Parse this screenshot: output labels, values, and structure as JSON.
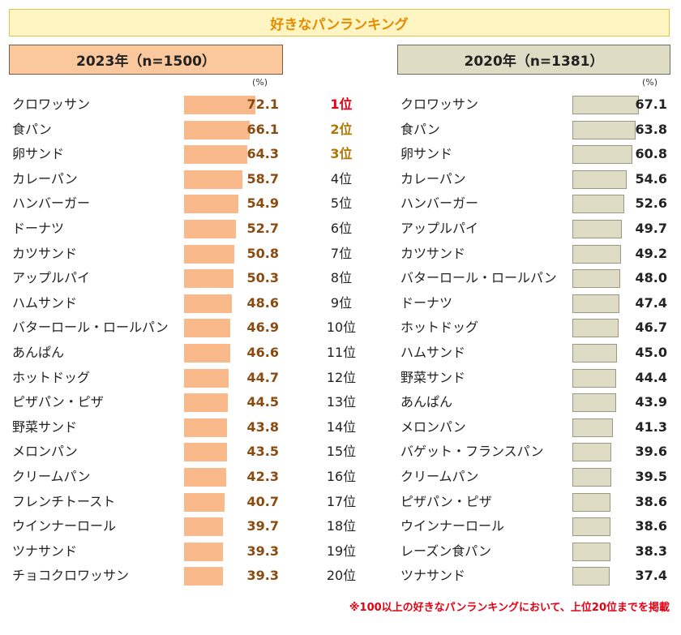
{
  "title": "好きなパンランキング",
  "footnote": "※100以上の好きなパンランキングにおいて、上位20位までを掲載",
  "colors": {
    "bar_2023": "#f9b98b",
    "bar_2020": "#dedcc4",
    "title_text": "#e58b00",
    "rank1": "#e60012",
    "rank_top3": "#b07800"
  },
  "chart_data": {
    "type": "bar",
    "orientation": "horizontal",
    "unit": "(%)",
    "ranks": [
      "1位",
      "2位",
      "3位",
      "4位",
      "5位",
      "6位",
      "7位",
      "8位",
      "9位",
      "10位",
      "11位",
      "12位",
      "13位",
      "14位",
      "15位",
      "16位",
      "17位",
      "18位",
      "19位",
      "20位"
    ],
    "series": [
      {
        "name": "2023年（n=1500）",
        "categories": [
          "クロワッサン",
          "食パン",
          "卵サンド",
          "カレーパン",
          "ハンバーガー",
          "ドーナツ",
          "カツサンド",
          "アップルパイ",
          "ハムサンド",
          "バターロール・ロールパン",
          "あんぱん",
          "ホットドッグ",
          "ピザパン・ピザ",
          "野菜サンド",
          "メロンパン",
          "クリームパン",
          "フレンチトースト",
          "ウインナーロール",
          "ツナサンド",
          "チョコクロワッサン"
        ],
        "values": [
          72.1,
          66.1,
          64.3,
          58.7,
          54.9,
          52.7,
          50.8,
          50.3,
          48.6,
          46.9,
          46.6,
          44.7,
          44.5,
          43.8,
          43.5,
          42.3,
          40.7,
          39.7,
          39.3,
          39.3
        ],
        "labels": [
          "72.1",
          "66.1",
          "64.3",
          "58.7",
          "54.9",
          "52.7",
          "50.8",
          "50.3",
          "48.6",
          "46.9",
          "46.6",
          "44.7",
          "44.5",
          "43.8",
          "43.5",
          "42.3",
          "40.7",
          "39.7",
          "39.3",
          "39.3"
        ]
      },
      {
        "name": "2020年（n=1381）",
        "categories": [
          "クロワッサン",
          "食パン",
          "卵サンド",
          "カレーパン",
          "ハンバーガー",
          "アップルパイ",
          "カツサンド",
          "バターロール・ロールパン",
          "ドーナツ",
          "ホットドッグ",
          "ハムサンド",
          "野菜サンド",
          "あんぱん",
          "メロンパン",
          "バゲット・フランスパン",
          "クリームパン",
          "ピザパン・ピザ",
          "ウインナーロール",
          "レーズン食パン",
          "ツナサンド"
        ],
        "values": [
          67.1,
          63.8,
          60.8,
          54.6,
          52.6,
          49.7,
          49.2,
          48.0,
          47.4,
          46.7,
          45.0,
          44.4,
          43.9,
          41.3,
          39.6,
          39.5,
          38.6,
          38.6,
          38.3,
          37.4
        ],
        "labels": [
          "67.1",
          "63.8",
          "60.8",
          "54.6",
          "52.6",
          "49.7",
          "49.2",
          "48.0",
          "47.4",
          "46.7",
          "45.0",
          "44.4",
          "43.9",
          "41.3",
          "39.6",
          "39.5",
          "38.6",
          "38.6",
          "38.3",
          "37.4"
        ]
      }
    ]
  }
}
